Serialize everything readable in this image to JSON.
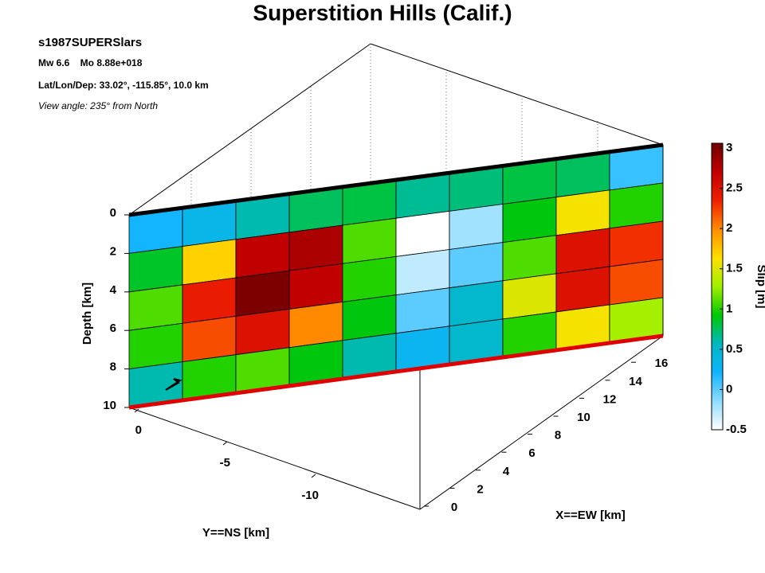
{
  "chart_data": {
    "type": "fault-slip-3d",
    "title": "Superstition Hills (Calif.)",
    "event": "s1987SUPERSlars",
    "magnitude": "Mw 6.6    Mo 8.88e+018",
    "location": "Lat/Lon/Dep: 33.02°, -115.85°, 10.0 km",
    "view": "View angle: 235° from North",
    "xlabel": "X==EW [km]",
    "ylabel": "Y==NS [km]",
    "zlabel": "Depth [km]",
    "colorbar_label": "Slip [m]",
    "xticks": [
      0,
      2,
      4,
      6,
      8,
      10,
      12,
      14,
      16
    ],
    "yticks": [
      0,
      -5,
      -10
    ],
    "zlim": [
      0,
      10
    ],
    "zticks": [
      0,
      2,
      4,
      6,
      8,
      10
    ],
    "clim": [
      -0.5,
      3.06
    ],
    "cticks": [
      -0.5,
      0,
      0.5,
      1,
      1.5,
      2,
      2.5,
      3
    ],
    "colormap": [
      "#ffffff",
      "#8fdcff",
      "#10b4ff",
      "#00b8c0",
      "#00c800",
      "#a0f000",
      "#ffe000",
      "#ff8c00",
      "#f02000",
      "#c00000",
      "#700000"
    ],
    "z": [
      [
        0.2,
        0.35,
        0.6,
        0.75,
        0.8,
        0.65,
        0.7,
        0.8,
        0.75,
        0.1
      ],
      [
        0.85,
        1.7,
        2.7,
        2.8,
        1.1,
        -0.5,
        -0.2,
        0.9,
        1.6,
        1.0
      ],
      [
        1.1,
        2.4,
        3.0,
        2.7,
        1.0,
        -0.3,
        0.0,
        1.1,
        2.5,
        2.3
      ],
      [
        1.0,
        2.2,
        2.5,
        2.0,
        0.9,
        0.0,
        0.5,
        1.5,
        2.5,
        2.2
      ],
      [
        0.6,
        1.0,
        1.1,
        0.9,
        0.6,
        0.3,
        0.5,
        1.0,
        1.6,
        1.3
      ]
    ]
  }
}
